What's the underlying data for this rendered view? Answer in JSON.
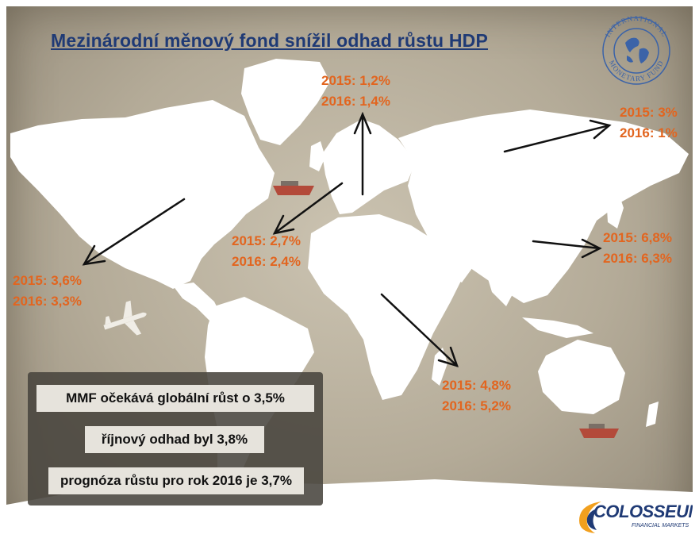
{
  "title": "Mezinárodní měnový fond snížil odhad růstu HDP",
  "imf_logo": {
    "ring_text_top": "INTERNATIONAL",
    "ring_text_bottom": "MONETARY FUND"
  },
  "regions": [
    {
      "id": "europe",
      "line1": "2015: 1,2%",
      "line2": "2016: 1,4%"
    },
    {
      "id": "russia",
      "line1": "2015: 3%",
      "line2": "2016: 1%"
    },
    {
      "id": "north-america",
      "line1": "2015: 3,6%",
      "line2": "2016: 3,3%"
    },
    {
      "id": "latin-america",
      "line1": "2015: 2,7%",
      "line2": "2016: 2,4%"
    },
    {
      "id": "asia",
      "line1": "2015: 6,8%",
      "line2": "2016: 6,3%"
    },
    {
      "id": "africa",
      "line1": "2015: 4,8%",
      "line2": "2016: 5,2%"
    }
  ],
  "info": [
    "MMF očekává globální růst o 3,5%",
    "říjnový odhad byl 3,8%",
    "prognóza růstu pro rok 2016 je 3,7%"
  ],
  "brand": {
    "name": "COLOSSEUM",
    "subtitle": "FINANCIAL MARKETS"
  },
  "colors": {
    "title": "#1f3a75",
    "values": "#e2651f",
    "land": "#ffffff",
    "background": "#b7ae9b",
    "arrows": "#111111"
  }
}
